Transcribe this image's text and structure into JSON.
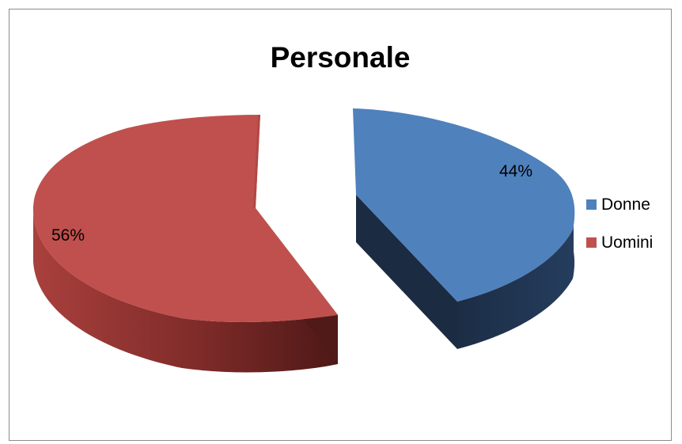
{
  "chart_data": {
    "type": "pie",
    "title": "Personale",
    "slices": [
      {
        "label": "Donne",
        "value": 44,
        "display": "44%",
        "color": "#4f81bd",
        "side_color": "#1f3350"
      },
      {
        "label": "Uomini",
        "value": 56,
        "display": "56%",
        "color": "#c0504d",
        "side_color": "#7a2c2a"
      }
    ],
    "legend_position": "right",
    "exploded": true,
    "three_d": true
  }
}
